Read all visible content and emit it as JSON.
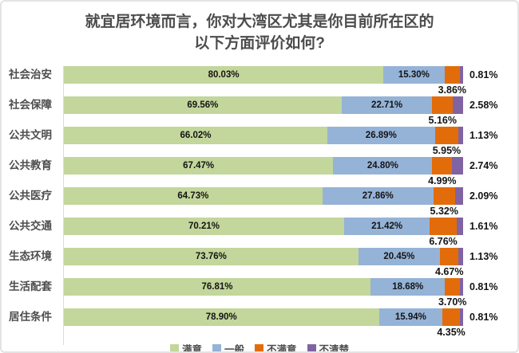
{
  "header": {
    "title_line1": "就宜居环境而言，你对大湾区尤其是你目前所在区的",
    "title_line2": "以下方面评价如何?"
  },
  "chart_data": {
    "type": "bar",
    "orientation": "horizontal",
    "stacked": true,
    "title": "就宜居环境而言，你对大湾区尤其是你目前所在区的以下方面评价如何?",
    "xlabel": "",
    "ylabel": "",
    "xlim": [
      0,
      100
    ],
    "unit": "%",
    "grid": false,
    "legend_position": "bottom",
    "categories": [
      "社会治安",
      "社会保障",
      "公共文明",
      "公共教育",
      "公共医疗",
      "公共交通",
      "生态环境",
      "生活配套",
      "居住条件"
    ],
    "series": [
      {
        "name": "满意",
        "color": "#c3d69b",
        "values": [
          80.03,
          69.56,
          66.02,
          67.47,
          64.73,
          70.21,
          73.76,
          76.81,
          78.9
        ],
        "labels": [
          "80.03%",
          "69.56%",
          "66.02%",
          "67.47%",
          "64.73%",
          "70.21%",
          "73.76%",
          "76.81%",
          "78.90%"
        ]
      },
      {
        "name": "一般",
        "color": "#95b3d7",
        "values": [
          15.3,
          22.71,
          26.89,
          24.8,
          27.86,
          21.42,
          20.45,
          18.68,
          15.94
        ],
        "labels": [
          "15.30%",
          "22.71%",
          "26.89%",
          "24.80%",
          "27.86%",
          "21.42%",
          "20.45%",
          "18.68%",
          "15.94%"
        ]
      },
      {
        "name": "不满意",
        "color": "#e36c0a",
        "values": [
          3.86,
          5.16,
          5.95,
          4.99,
          5.32,
          6.76,
          4.67,
          3.7,
          4.35
        ],
        "labels": [
          "3.86%",
          "5.16%",
          "5.95%",
          "4.99%",
          "5.32%",
          "6.76%",
          "4.67%",
          "3.70%",
          "4.35%"
        ]
      },
      {
        "name": "不清楚",
        "color": "#8064a2",
        "values": [
          0.81,
          2.58,
          1.13,
          2.74,
          2.09,
          1.61,
          1.13,
          0.81,
          0.81
        ],
        "labels": [
          "0.81%",
          "2.58%",
          "1.13%",
          "2.74%",
          "2.09%",
          "1.61%",
          "1.13%",
          "0.81%",
          "0.81%"
        ]
      }
    ]
  }
}
